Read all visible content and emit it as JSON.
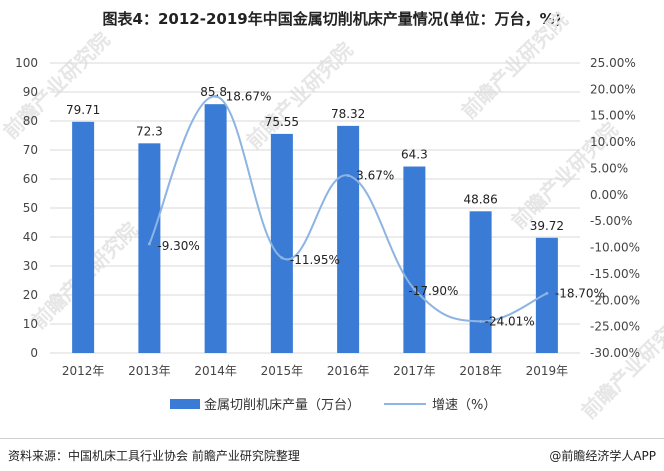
{
  "title": "图表4：2012-2019年中国金属切削机床产量情况(单位：万台，%)",
  "source": "资料来源：中国机床工具行业协会 前瞻产业研究院整理",
  "brand": "@前瞻经济学人APP",
  "watermark": "前瞻产业研究院",
  "chart_data": {
    "type": "bar",
    "categories": [
      "2012年",
      "2013年",
      "2014年",
      "2015年",
      "2016年",
      "2017年",
      "2018年",
      "2019年"
    ],
    "series": [
      {
        "name": "金属切削机床产量（万台）",
        "type": "bar",
        "axis": "left",
        "color": "#3a7bd5",
        "values": [
          79.71,
          72.3,
          85.8,
          75.55,
          78.32,
          64.3,
          48.86,
          39.72
        ],
        "labels": [
          "79.71",
          "72.3",
          "85.8",
          "75.55",
          "78.32",
          "64.3",
          "48.86",
          "39.72"
        ]
      },
      {
        "name": "增速（%）",
        "type": "line",
        "axis": "right",
        "color": "#8db4e2",
        "values": [
          null,
          -9.3,
          18.67,
          -11.95,
          3.67,
          -17.9,
          -24.01,
          -18.7
        ],
        "labels": [
          "",
          "-9.30%",
          "18.67%",
          "-11.95%",
          "3.67%",
          "-17.90%",
          "-24.01%",
          "-18.70%"
        ]
      }
    ],
    "y_left": {
      "min": 0,
      "max": 100,
      "step": 10,
      "ticks": [
        "0",
        "10",
        "20",
        "30",
        "40",
        "50",
        "60",
        "70",
        "80",
        "90",
        "100"
      ]
    },
    "y_right": {
      "min": -30,
      "max": 25,
      "step": 5,
      "ticks": [
        "-30.00%",
        "-25.00%",
        "-20.00%",
        "-15.00%",
        "-10.00%",
        "-5.00%",
        "0.00%",
        "5.00%",
        "10.00%",
        "15.00%",
        "20.00%",
        "25.00%"
      ]
    },
    "grid": true,
    "legend": "bottom"
  }
}
